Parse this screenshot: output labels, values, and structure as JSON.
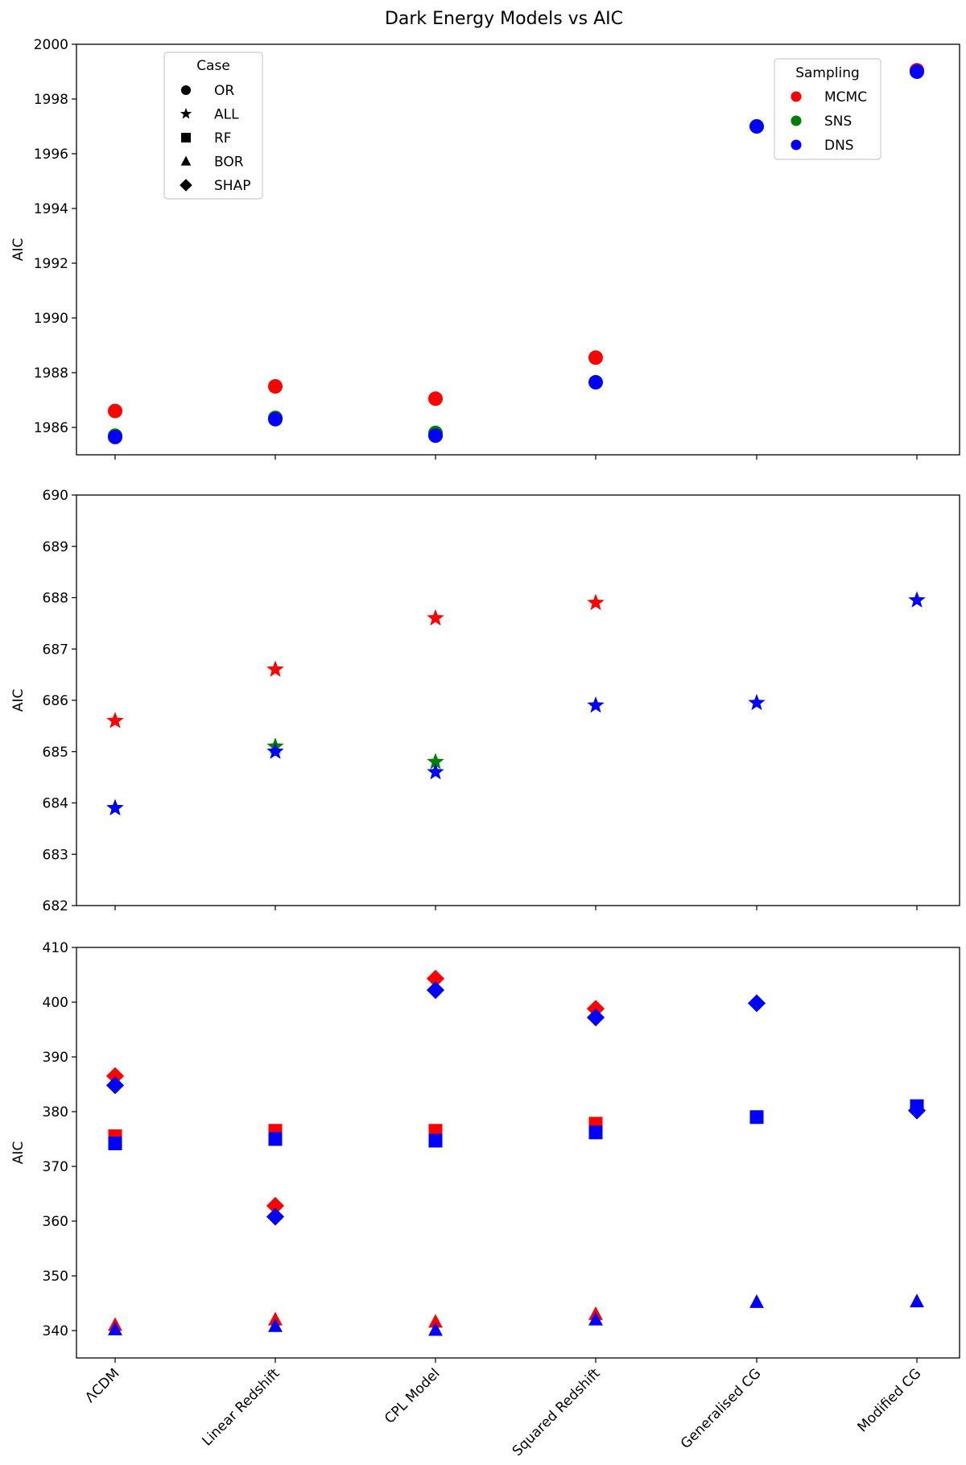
{
  "chart_data": {
    "type": "scatter",
    "title": "Dark Energy Models vs AIC",
    "categories": [
      "ΛCDM",
      "Linear Redshift",
      "CPL Model",
      "Squared Redshift",
      "Generalised CG",
      "Modified CG"
    ],
    "colors": {
      "MCMC": "#ff0000",
      "SNS": "#008000",
      "DNS": "#0000ff"
    },
    "legend_case": {
      "title": "Case",
      "placement": "upper-left",
      "items": [
        {
          "label": "OR",
          "marker": "circle"
        },
        {
          "label": "ALL",
          "marker": "star"
        },
        {
          "label": "RF",
          "marker": "square"
        },
        {
          "label": "BOR",
          "marker": "triangle"
        },
        {
          "label": "SHAP",
          "marker": "diamond"
        }
      ]
    },
    "legend_sampling": {
      "title": "Sampling",
      "placement": "upper-right",
      "items": [
        {
          "label": "MCMC",
          "color": "#ff0000"
        },
        {
          "label": "SNS",
          "color": "#008000"
        },
        {
          "label": "DNS",
          "color": "#0000ff"
        }
      ]
    },
    "panels": [
      {
        "ylabel": "AIC",
        "ylim": [
          1985,
          2000
        ],
        "yticks": [
          1986,
          1988,
          1990,
          1992,
          1994,
          1996,
          1998,
          2000
        ],
        "series": [
          {
            "case": "OR",
            "sampling": "MCMC",
            "marker": "circle",
            "values": [
              1986.6,
              1987.5,
              1987.05,
              1988.55,
              null,
              1999.05
            ]
          },
          {
            "case": "OR",
            "sampling": "SNS",
            "marker": "circle",
            "values": [
              1985.7,
              1986.35,
              1985.8,
              null,
              null,
              null
            ]
          },
          {
            "case": "OR",
            "sampling": "DNS",
            "marker": "circle",
            "values": [
              1985.65,
              1986.3,
              1985.7,
              1987.65,
              1997.0,
              1999.0
            ]
          }
        ]
      },
      {
        "ylabel": "AIC",
        "ylim": [
          682,
          690
        ],
        "yticks": [
          682,
          683,
          684,
          685,
          686,
          687,
          688,
          689,
          690
        ],
        "series": [
          {
            "case": "ALL",
            "sampling": "MCMC",
            "marker": "star",
            "values": [
              685.6,
              686.6,
              687.6,
              687.9,
              null,
              null
            ]
          },
          {
            "case": "ALL",
            "sampling": "SNS",
            "marker": "star",
            "values": [
              683.9,
              685.1,
              684.8,
              null,
              null,
              null
            ]
          },
          {
            "case": "ALL",
            "sampling": "DNS",
            "marker": "star",
            "values": [
              683.9,
              685.0,
              684.6,
              685.9,
              685.95,
              687.95
            ]
          }
        ]
      },
      {
        "ylabel": "AIC",
        "ylim": [
          335,
          410
        ],
        "yticks": [
          340,
          350,
          360,
          370,
          380,
          390,
          400,
          410
        ],
        "series": [
          {
            "case": "RF",
            "sampling": "MCMC",
            "marker": "square",
            "values": [
              375.5,
              376.5,
              376.5,
              377.8,
              null,
              null
            ]
          },
          {
            "case": "RF",
            "sampling": "DNS",
            "marker": "square",
            "values": [
              374.2,
              375.0,
              374.7,
              376.2,
              379.0,
              381.0
            ]
          },
          {
            "case": "BOR",
            "sampling": "MCMC",
            "marker": "triangle",
            "values": [
              341.0,
              342.0,
              341.6,
              343.0,
              null,
              null
            ]
          },
          {
            "case": "BOR",
            "sampling": "DNS",
            "marker": "triangle",
            "values": [
              340.2,
              340.8,
              340.1,
              342.0,
              345.2,
              345.3
            ]
          },
          {
            "case": "SHAP",
            "sampling": "MCMC",
            "marker": "diamond",
            "values": [
              386.5,
              362.8,
              404.3,
              398.8,
              null,
              null
            ]
          },
          {
            "case": "SHAP",
            "sampling": "DNS",
            "marker": "diamond",
            "values": [
              384.8,
              360.8,
              402.2,
              397.2,
              399.8,
              380.2
            ]
          }
        ]
      }
    ]
  }
}
